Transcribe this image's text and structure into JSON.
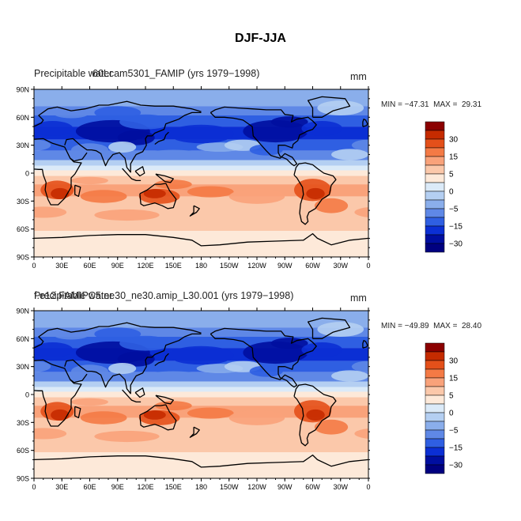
{
  "title": "DJF-JJA",
  "panels": [
    {
      "id": "top",
      "left_label": "Precipitable water",
      "overlay_label": "60Lcam5301_FAMIP (yrs 1979−1998)",
      "units": "mm",
      "min_max": "MIN = −47.31  MAX =  29.31"
    },
    {
      "id": "bottom",
      "left_label": "Precipitable water",
      "overlay_label": "f.e12.FAMIPC5.ne30_ne30.amip_L30.001 (yrs 1979−1998)",
      "units": "mm",
      "min_max": "MIN = −49.89  MAX =  28.40"
    }
  ],
  "axes": {
    "lat_labels": [
      "90N",
      "60N",
      "30N",
      "0",
      "30S",
      "60S",
      "90S"
    ],
    "lon_labels": [
      "0",
      "30E",
      "60E",
      "90E",
      "120E",
      "150E",
      "180",
      "150W",
      "120W",
      "90W",
      "60W",
      "30W",
      "0"
    ]
  },
  "colorbar": {
    "labels": [
      "30",
      "15",
      "5",
      "0",
      "−5",
      "−15",
      "−30"
    ],
    "colors": [
      "#8b0000",
      "#c52b00",
      "#e4501a",
      "#f47a45",
      "#f9a27a",
      "#fbc8aa",
      "#fde9d9",
      "#dbeaf8",
      "#b4cff2",
      "#8aaeeb",
      "#5f88e6",
      "#2f5fe2",
      "#0b2fd4",
      "#000ea0",
      "#000080"
    ]
  },
  "chart_data": {
    "type": "heatmap",
    "title": "DJF-JJA",
    "variable": "Precipitable water",
    "units": "mm",
    "xlabel": "",
    "ylabel": "",
    "lon_range": [
      0,
      360
    ],
    "lat_range": [
      -90,
      90
    ],
    "contour_levels": [
      -30,
      -25,
      -20,
      -15,
      -10,
      -5,
      -2.5,
      0,
      2.5,
      5,
      10,
      15,
      20,
      25,
      30
    ],
    "panels": [
      {
        "name": "60Lcam5301_FAMIP (yrs 1979−1998)",
        "min": -47.31,
        "max": 29.31
      },
      {
        "name": "f.e12.FAMIPC5.ne30_ne30.amip_L30.001 (yrs 1979−1998)",
        "min": -49.89,
        "max": 28.4
      }
    ]
  }
}
